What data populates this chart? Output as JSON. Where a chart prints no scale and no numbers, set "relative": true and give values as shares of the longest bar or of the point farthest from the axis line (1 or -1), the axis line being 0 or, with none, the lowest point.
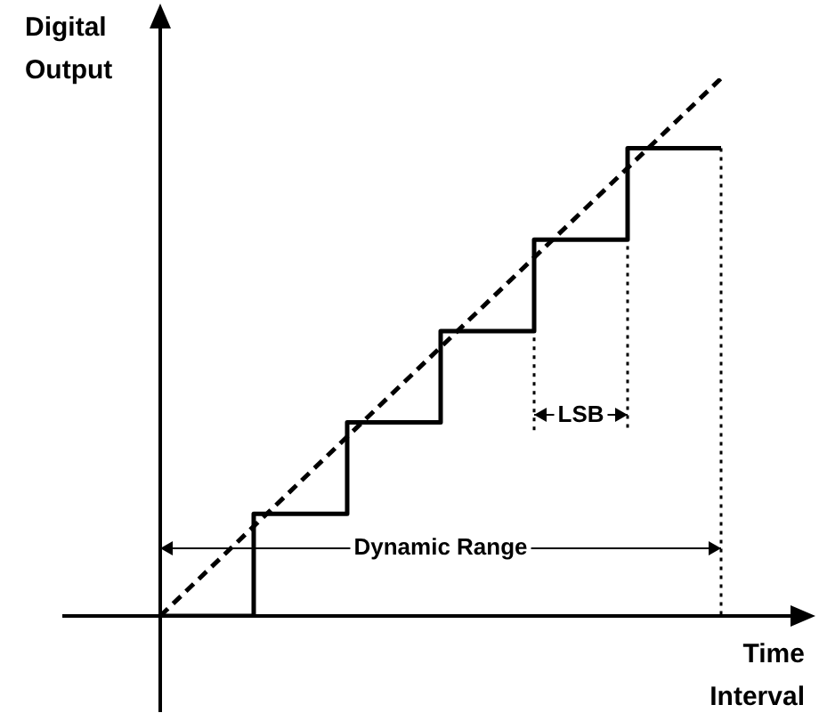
{
  "chart_data": {
    "type": "step",
    "xlabel": "Time Interval",
    "ylabel": "Digital Output",
    "relative": true,
    "categories": [
      null,
      null,
      null,
      null,
      null,
      null,
      null
    ],
    "series": [
      {
        "color": "#000000",
        "line_style": "solid",
        "values": [
          0,
          0.19,
          0.36,
          0.53,
          0.7,
          0.87,
          0.87
        ]
      },
      {
        "type": "line",
        "color": "#000000",
        "line_style": "dashed",
        "values": [
          0,
          null,
          null,
          null,
          null,
          null,
          1
        ]
      }
    ],
    "annotations": [
      "LSB",
      "Dynamic Range"
    ],
    "legend": false,
    "grid": false,
    "marker": "none"
  }
}
